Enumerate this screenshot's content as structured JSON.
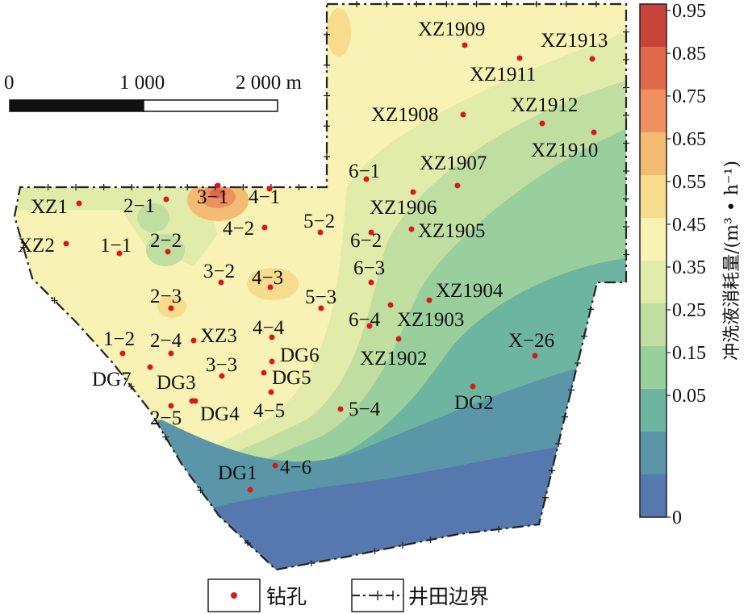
{
  "scale_bar": {
    "labels": [
      "0",
      "1 000",
      "2 000 m"
    ]
  },
  "colorbar": {
    "title": "冲洗液消耗量/(m³ • h⁻¹)",
    "ticks": [
      "0.95",
      "0.85",
      "0.75",
      "0.65",
      "0.55",
      "0.45",
      "0.35",
      "0.25",
      "0.15",
      "0.05",
      "0"
    ],
    "colors": [
      "#c8433a",
      "#de6a49",
      "#ee9060",
      "#f4bb72",
      "#f6dc8c",
      "#f8f2b4",
      "#e2ecaa",
      "#bfdea0",
      "#98cf9d",
      "#6db5a1",
      "#5a96a8",
      "#5579ae"
    ]
  },
  "legend": {
    "borehole": "钻孔",
    "boundary": "井田边界"
  },
  "boreholes": [
    "XZ1909",
    "XZ1913",
    "XZ1911",
    "XZ1908",
    "XZ1912",
    "XZ1910",
    "6−1",
    "XZ1907",
    "XZ1",
    "2−1",
    "3−1",
    "4−1",
    "XZ1906",
    "4−2",
    "5−2",
    "XZ1905",
    "6−2",
    "XZ2",
    "1−1",
    "2−2",
    "3−2",
    "4−3",
    "6−3",
    "XZ1904",
    "2−3",
    "5−3",
    "XZ1903",
    "6−4",
    "4−4",
    "XZ3",
    "1−2",
    "2−4",
    "X−26",
    "DG6",
    "XZ1902",
    "DG7",
    "3−3",
    "DG5",
    "DG3",
    "DG2",
    "DG4",
    "2−5",
    "4−5",
    "5−4",
    "DG1",
    "4−6"
  ]
}
